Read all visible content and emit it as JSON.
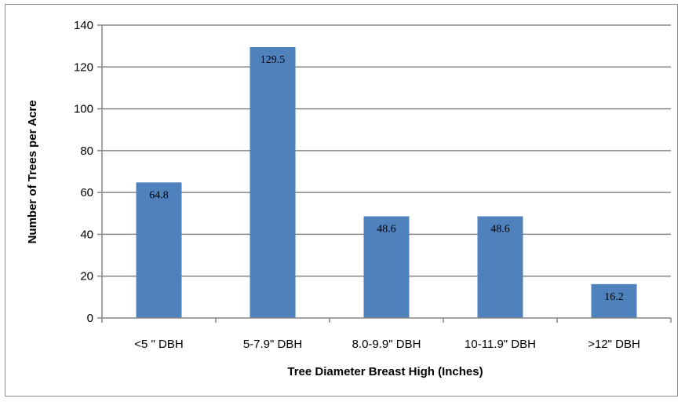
{
  "chart_data": {
    "type": "bar",
    "title": "",
    "xlabel": "Tree Diameter Breast High (Inches)",
    "ylabel": "Number of Trees per Acre",
    "categories": [
      "<5 \" DBH",
      "5-7.9\" DBH",
      "8.0-9.9\" DBH",
      "10-11.9\" DBH",
      ">12\" DBH"
    ],
    "values": [
      64.8,
      129.5,
      48.6,
      48.6,
      16.2
    ],
    "data_labels": [
      "64.8",
      "129.5",
      "48.6",
      "48.6",
      "16.2"
    ],
    "ylim": [
      0,
      140
    ],
    "yticks": [
      "0",
      "20",
      "40",
      "60",
      "80",
      "100",
      "120",
      "140"
    ],
    "grid": true,
    "legend": "none",
    "bar_color": "#4f81bd",
    "grid_color": "#868686"
  }
}
